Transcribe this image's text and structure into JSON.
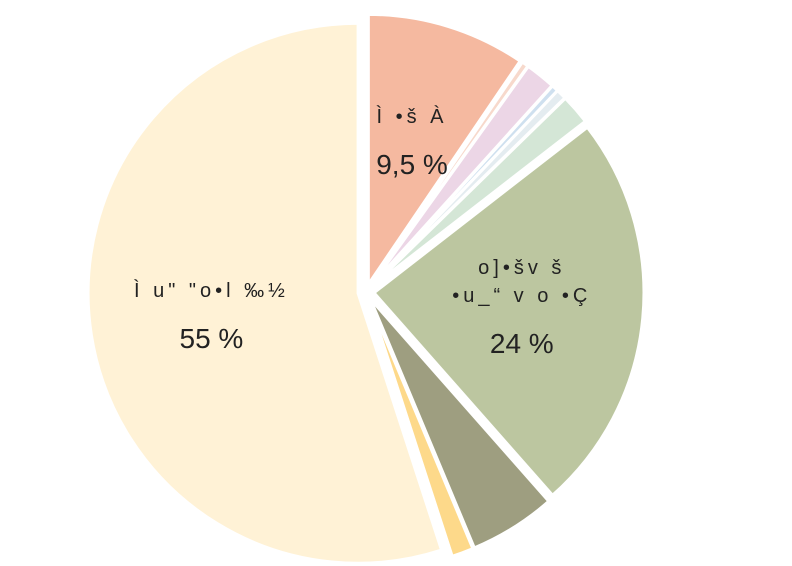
{
  "chart_data": {
    "type": "pie",
    "categories": [
      "Ì •š À",
      null,
      null,
      null,
      null,
      null,
      "o]•šv š\n•u_“ v o •Ç",
      null,
      null,
      "Ì u\" \"o•l ‰½"
    ],
    "values": [
      9.5,
      0.4,
      1.8,
      0.4,
      0.6,
      1.8,
      24,
      5.2,
      1.3,
      55
    ],
    "value_labels": [
      "9,5 %",
      null,
      null,
      null,
      null,
      null,
      "24 %",
      null,
      null,
      "55 %"
    ],
    "colors": [
      "#f5b9a0",
      "#f7d9cc",
      "#ecd6e6",
      "#cfe0ef",
      "#e4ecf0",
      "#d4e6d6",
      "#bcc6a0",
      "#9e9e80",
      "#fdd98a",
      "#fff2d6"
    ]
  }
}
